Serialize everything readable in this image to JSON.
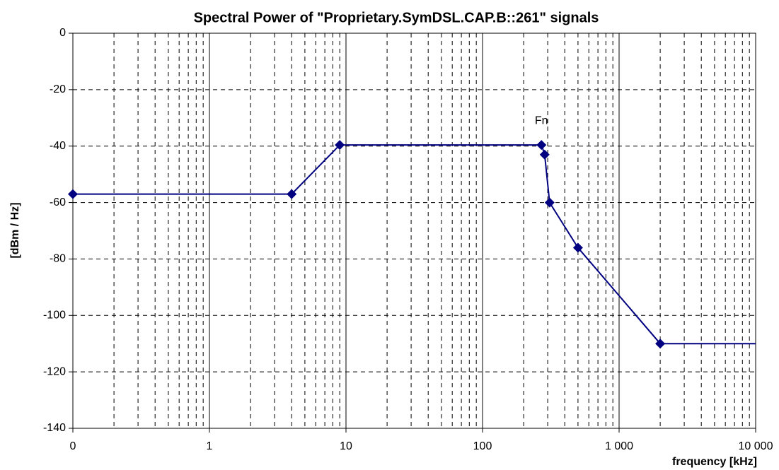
{
  "chart_data": {
    "type": "line",
    "title": "Spectral Power of \"Proprietary.SymDSL.CAP.B::261\" signals",
    "x_label": "frequency [kHz]",
    "y_label": "[dBm / Hz]",
    "x_scale": "log",
    "xlim": [
      0.1,
      10000
    ],
    "xticks": [
      {
        "value": 0.1,
        "label": "0"
      },
      1,
      10,
      100,
      {
        "value": 1000,
        "label": "1 000"
      },
      {
        "value": 10000,
        "label": "10 000"
      }
    ],
    "ylim": [
      -140,
      0
    ],
    "yticks": [
      0,
      -20,
      -40,
      -60,
      -80,
      -100,
      -120,
      -140
    ],
    "grid": true,
    "series": [
      {
        "name": "Proprietary.SymDSL.CAP.B::261",
        "color": "#000080",
        "x": [
          0.1,
          4,
          9,
          270,
          285,
          310,
          500,
          2000,
          10000
        ],
        "values": [
          -57,
          -57,
          -39.6,
          -39.6,
          -43,
          -60,
          -76,
          -110,
          -110
        ]
      }
    ],
    "annotations": [
      {
        "text": "Fn",
        "x": 270,
        "y": -39.6
      }
    ]
  }
}
